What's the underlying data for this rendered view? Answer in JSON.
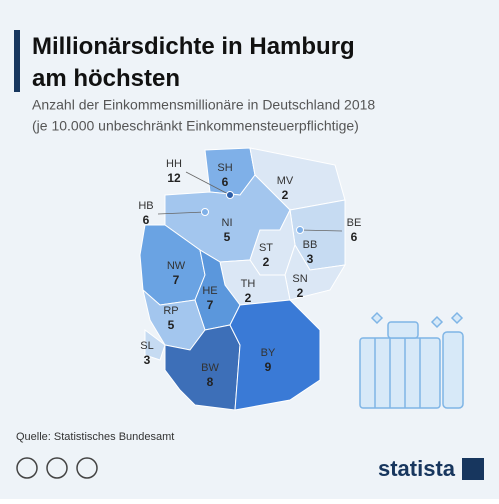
{
  "title": "Millionärsdichte in Hamburg am höchsten",
  "subtitle_lines": [
    "Anzahl der Einkommensmillionäre in Deutschland 2018",
    "(je 10.000 unbeschränkt Einkommensteuerpflichtige)"
  ],
  "regions": [
    {
      "code": "SH",
      "value": 6,
      "color": "#7fb0e8"
    },
    {
      "code": "HH",
      "value": 12,
      "color": "#2e5fa8"
    },
    {
      "code": "MV",
      "value": 2,
      "color": "#dbe7f5"
    },
    {
      "code": "HB",
      "value": 6,
      "color": "#7fb0e8"
    },
    {
      "code": "NI",
      "value": 5,
      "color": "#a3c6ee"
    },
    {
      "code": "BE",
      "value": 6,
      "color": "#7fb0e8"
    },
    {
      "code": "BB",
      "value": 3,
      "color": "#c6dbf2"
    },
    {
      "code": "ST",
      "value": 2,
      "color": "#dbe7f5"
    },
    {
      "code": "SN",
      "value": 2,
      "color": "#dbe7f5"
    },
    {
      "code": "TH",
      "value": 2,
      "color": "#dbe7f5"
    },
    {
      "code": "NW",
      "value": 7,
      "color": "#6aa3e3"
    },
    {
      "code": "HE",
      "value": 7,
      "color": "#5b97dc"
    },
    {
      "code": "RP",
      "value": 5,
      "color": "#a3c6ee"
    },
    {
      "code": "SL",
      "value": 3,
      "color": "#c6dbf2"
    },
    {
      "code": "BW",
      "value": 8,
      "color": "#3d6fb8"
    },
    {
      "code": "BY",
      "value": 9,
      "color": "#3a7ad6"
    }
  ],
  "source": "Quelle: Statistisches Bundesamt",
  "logo": "statista"
}
